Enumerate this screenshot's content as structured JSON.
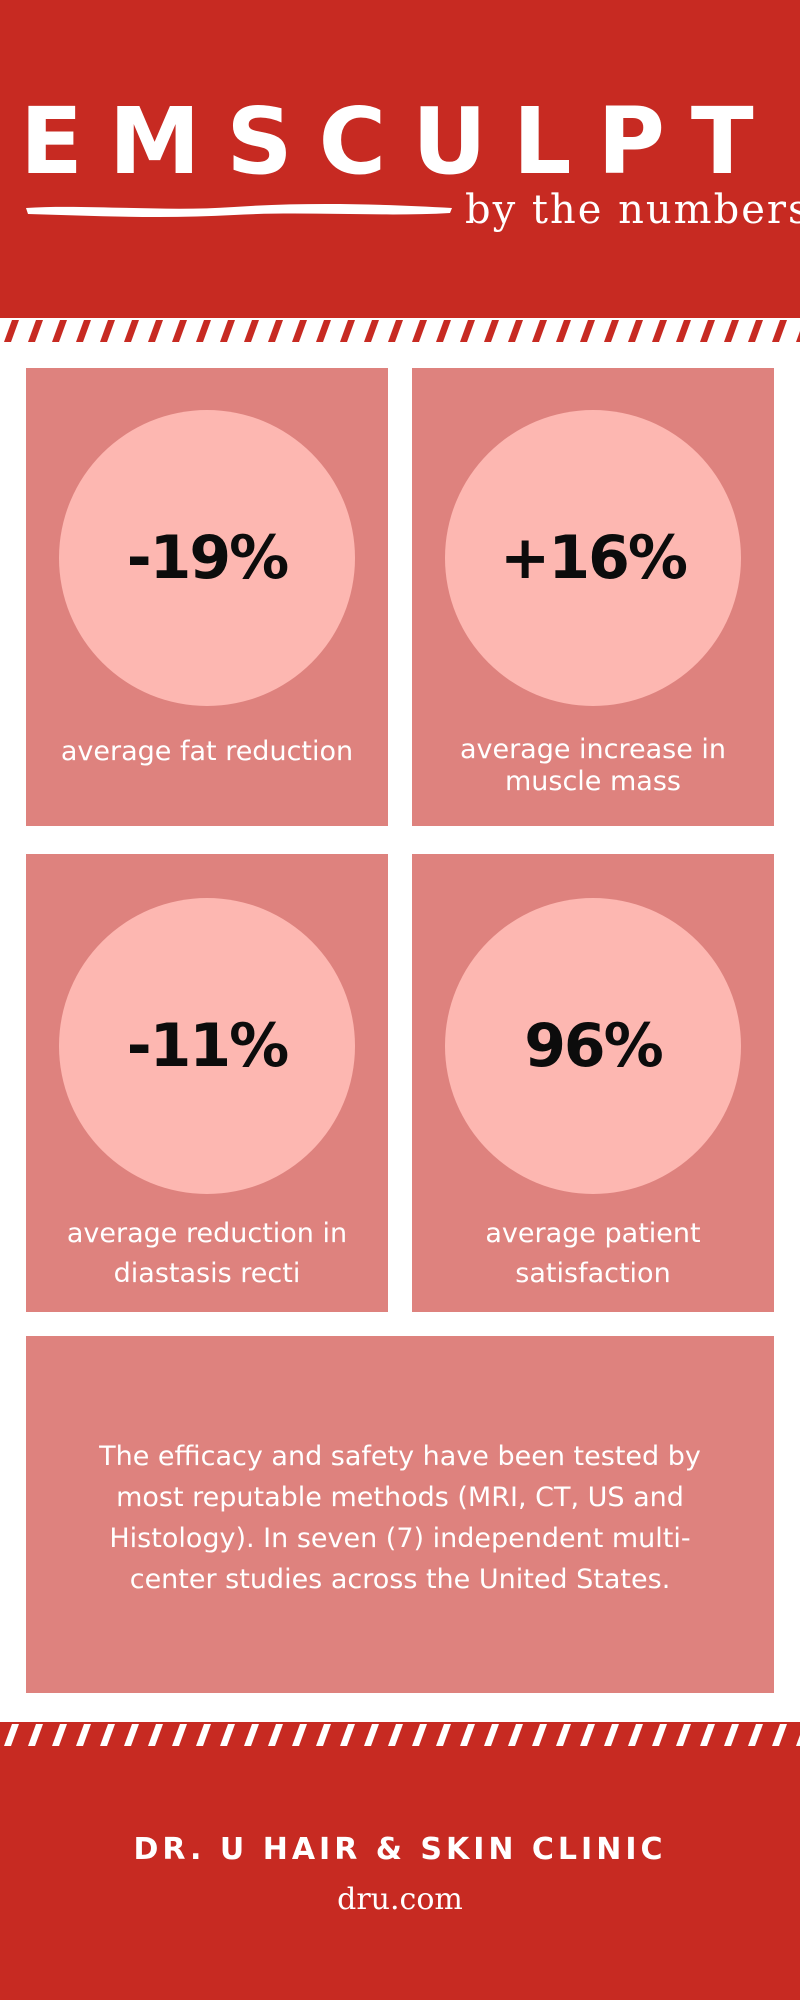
{
  "header": {
    "title": "EMSCULPT",
    "subtitle": "by the numbers"
  },
  "stats": [
    {
      "value": "-19%",
      "label_lines": [
        "average fat reduction"
      ]
    },
    {
      "value": "+16%",
      "label_lines": [
        "average increase in",
        "muscle mass"
      ]
    },
    {
      "value": "-11%",
      "label_lines": [
        "average reduction in",
        "diastasis recti"
      ]
    },
    {
      "value": "96%",
      "label_lines": [
        "average patient",
        "satisfaction"
      ]
    }
  ],
  "note": {
    "lines": [
      "The efficacy and safety have been tested by",
      "most reputable methods (MRI, CT, US and",
      "Histology). In seven (7) independent multi-",
      "center studies across the United States."
    ]
  },
  "footer": {
    "clinic": "DR. U HAIR & SKIN CLINIC",
    "website": "dru.com"
  },
  "colors": {
    "brand_red": "#c72a22",
    "card": "#de827e",
    "circle": "#fdb7b1",
    "value_text": "#0c0c0c"
  }
}
